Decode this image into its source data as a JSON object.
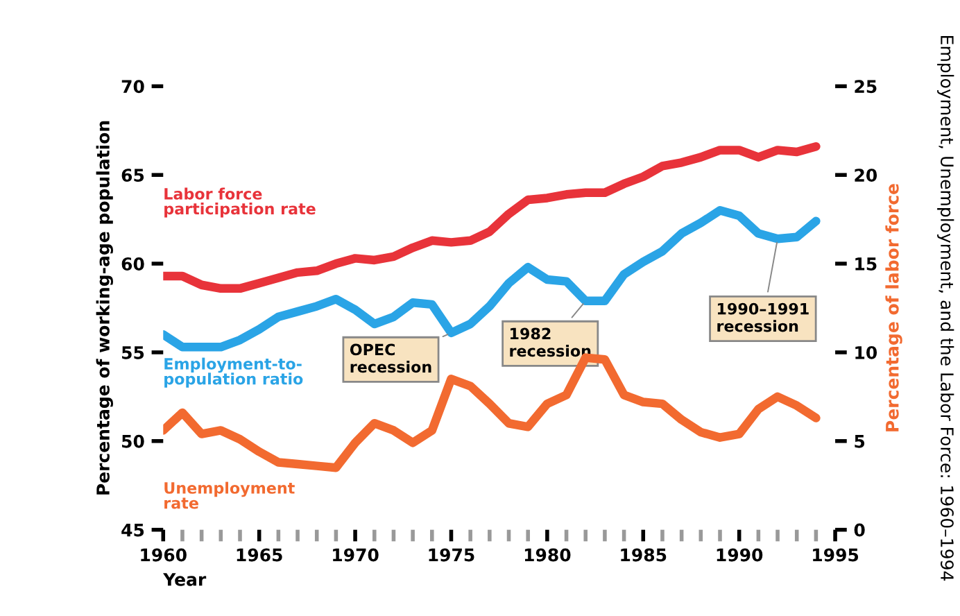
{
  "chart_data": {
    "type": "line",
    "title": "Employment, Unemployment, and the Labor Force: 1960–1994",
    "xlabel": "Year",
    "ylabel": "Percentage of working-age population",
    "y2label": "Percentage of labor force",
    "x": [
      1960,
      1961,
      1962,
      1963,
      1964,
      1965,
      1966,
      1967,
      1968,
      1969,
      1970,
      1971,
      1972,
      1973,
      1974,
      1975,
      1976,
      1977,
      1978,
      1979,
      1980,
      1981,
      1982,
      1983,
      1984,
      1985,
      1986,
      1987,
      1988,
      1989,
      1990,
      1991,
      1992,
      1993,
      1994
    ],
    "series": [
      {
        "name": "Labor force participation rate",
        "color": "#e8333a",
        "values": [
          59.3,
          59.3,
          58.8,
          58.6,
          58.6,
          58.9,
          59.2,
          59.5,
          59.6,
          60.0,
          60.3,
          60.2,
          60.4,
          60.9,
          61.3,
          61.2,
          61.3,
          61.8,
          62.8,
          63.6,
          63.7,
          63.9,
          64.0,
          64.0,
          64.5,
          64.9,
          65.5,
          65.7,
          66.0,
          66.4,
          66.4,
          66.0,
          66.4,
          66.3,
          66.6
        ]
      },
      {
        "name": "Employment-to-population ratio",
        "color": "#2aa4e6",
        "values": [
          56.0,
          55.3,
          55.3,
          55.3,
          55.7,
          56.3,
          57.0,
          57.3,
          57.6,
          58.0,
          57.4,
          56.6,
          57.0,
          57.8,
          57.7,
          56.1,
          56.6,
          57.6,
          58.9,
          59.8,
          59.1,
          59.0,
          57.9,
          57.9,
          59.4,
          60.1,
          60.7,
          61.7,
          62.3,
          63.0,
          62.7,
          61.7,
          61.4,
          61.5,
          62.4
        ]
      },
      {
        "name": "Unemployment rate",
        "color": "#f26a30",
        "axis": "y2",
        "values": [
          5.6,
          6.6,
          5.4,
          5.6,
          5.1,
          4.4,
          3.8,
          3.7,
          3.6,
          3.5,
          4.9,
          6.0,
          5.6,
          4.9,
          5.6,
          8.5,
          8.1,
          7.1,
          6.0,
          5.8,
          7.1,
          7.6,
          9.7,
          9.6,
          7.6,
          7.2,
          7.1,
          6.2,
          5.5,
          5.2,
          5.4,
          6.8,
          7.5,
          7.0,
          6.3
        ]
      }
    ],
    "xlim": [
      1960,
      1995
    ],
    "xticks": [
      1960,
      {
        "value": 1961,
        "label": null
      },
      {
        "value": 1962,
        "label": null
      },
      {
        "value": 1963,
        "label": null
      },
      {
        "value": 1964,
        "label": null
      },
      1965,
      {
        "value": 1966,
        "label": null
      },
      {
        "value": 1967,
        "label": null
      },
      {
        "value": 1968,
        "label": null
      },
      {
        "value": 1969,
        "label": null
      },
      1970,
      {
        "value": 1971,
        "label": null
      },
      {
        "value": 1972,
        "label": null
      },
      {
        "value": 1973,
        "label": null
      },
      {
        "value": 1974,
        "label": null
      },
      1975,
      {
        "value": 1976,
        "label": null
      },
      {
        "value": 1977,
        "label": null
      },
      {
        "value": 1978,
        "label": null
      },
      {
        "value": 1979,
        "label": null
      },
      1980,
      {
        "value": 1981,
        "label": null
      },
      {
        "value": 1982,
        "label": null
      },
      {
        "value": 1983,
        "label": null
      },
      {
        "value": 1984,
        "label": null
      },
      1985,
      {
        "value": 1986,
        "label": null
      },
      {
        "value": 1987,
        "label": null
      },
      {
        "value": 1988,
        "label": null
      },
      {
        "value": 1989,
        "label": null
      },
      1990,
      {
        "value": 1991,
        "label": null
      },
      {
        "value": 1992,
        "label": null
      },
      {
        "value": 1993,
        "label": null
      },
      {
        "value": 1994,
        "label": null
      },
      1995
    ],
    "ylim": [
      45,
      70
    ],
    "yticks": [
      45,
      50,
      55,
      60,
      65,
      70
    ],
    "y2lim": [
      0,
      25
    ],
    "y2ticks": [
      0,
      5,
      10,
      15,
      20,
      25
    ],
    "annotations": [
      {
        "text": "OPEC\nrecession",
        "x": 1975,
        "y": 56.1
      },
      {
        "text": "1982\nrecession",
        "x": 1982,
        "y": 57.9
      },
      {
        "text": "1990–1991\nrecession",
        "x": 1992,
        "y": 61.4
      }
    ],
    "grid": false,
    "legend": false,
    "line_style": "solid",
    "marker": "none"
  }
}
